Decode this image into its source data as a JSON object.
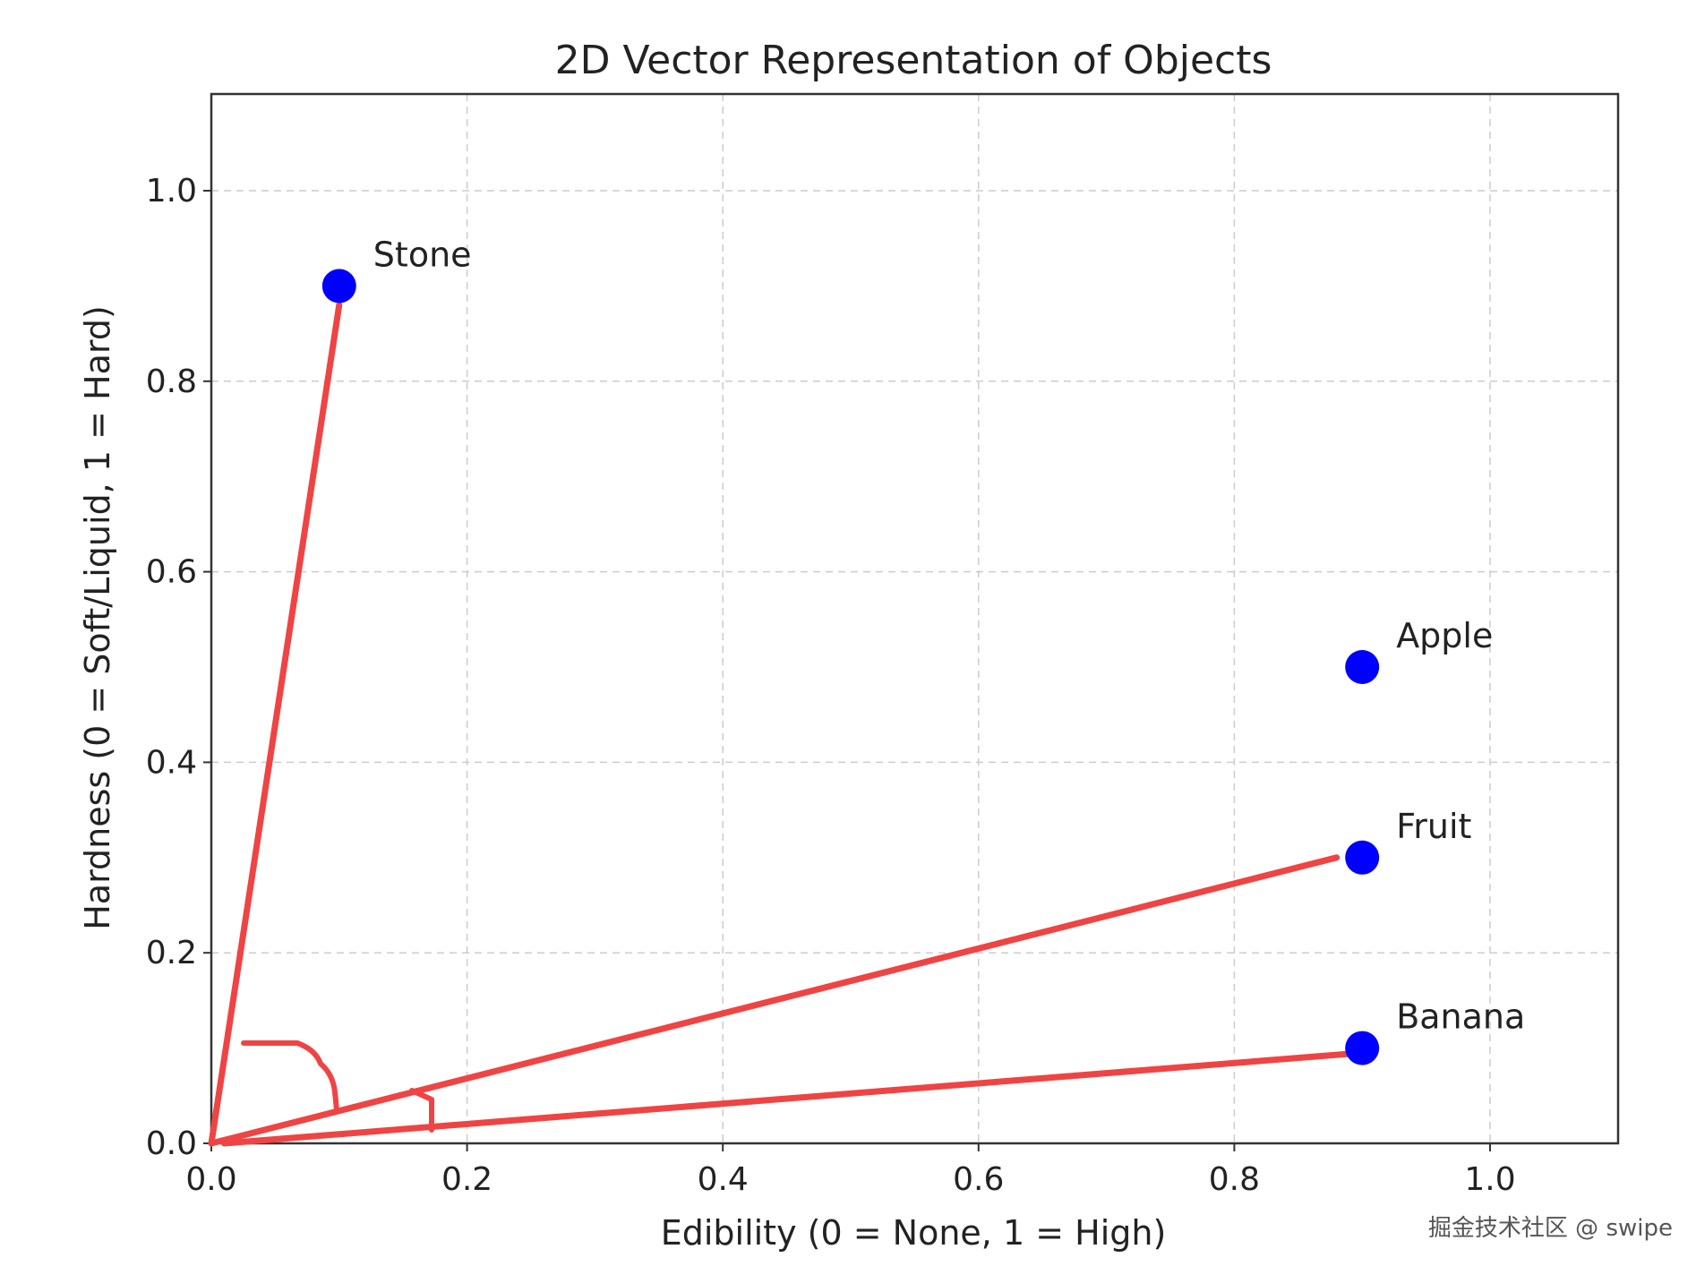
{
  "chart_data": {
    "type": "scatter",
    "title": "2D Vector Representation of Objects",
    "xlabel": "Edibility (0 = None, 1 = High)",
    "ylabel": "Hardness (0 = Soft/Liquid, 1 = Hard)",
    "xlim": [
      0,
      1.1
    ],
    "ylim": [
      0,
      1.1
    ],
    "xticks": [
      0.0,
      0.2,
      0.4,
      0.6,
      0.8,
      1.0
    ],
    "yticks": [
      0.0,
      0.2,
      0.4,
      0.6,
      0.8,
      1.0
    ],
    "xtick_labels": [
      "0.0",
      "0.2",
      "0.4",
      "0.6",
      "0.8",
      "1.0"
    ],
    "ytick_labels": [
      "0.0",
      "0.2",
      "0.4",
      "0.6",
      "0.8",
      "1.0"
    ],
    "grid": true,
    "marker_color": "#0000ff",
    "vector_color": "#ef4444",
    "points": [
      {
        "label": "Stone",
        "x": 0.1,
        "y": 0.9
      },
      {
        "label": "Apple",
        "x": 0.9,
        "y": 0.5
      },
      {
        "label": "Fruit",
        "x": 0.9,
        "y": 0.3
      },
      {
        "label": "Banana",
        "x": 0.9,
        "y": 0.1
      }
    ],
    "vectors": [
      {
        "to": "Stone",
        "from": [
          0,
          0
        ],
        "end": [
          0.1,
          0.88
        ]
      },
      {
        "to": "Fruit",
        "from": [
          0,
          0
        ],
        "end": [
          0.88,
          0.3
        ]
      },
      {
        "to": "Banana",
        "from": [
          0.01,
          0
        ],
        "end": [
          0.9,
          0.095
        ]
      }
    ]
  },
  "watermark": "掘金技术社区 @ swipe"
}
